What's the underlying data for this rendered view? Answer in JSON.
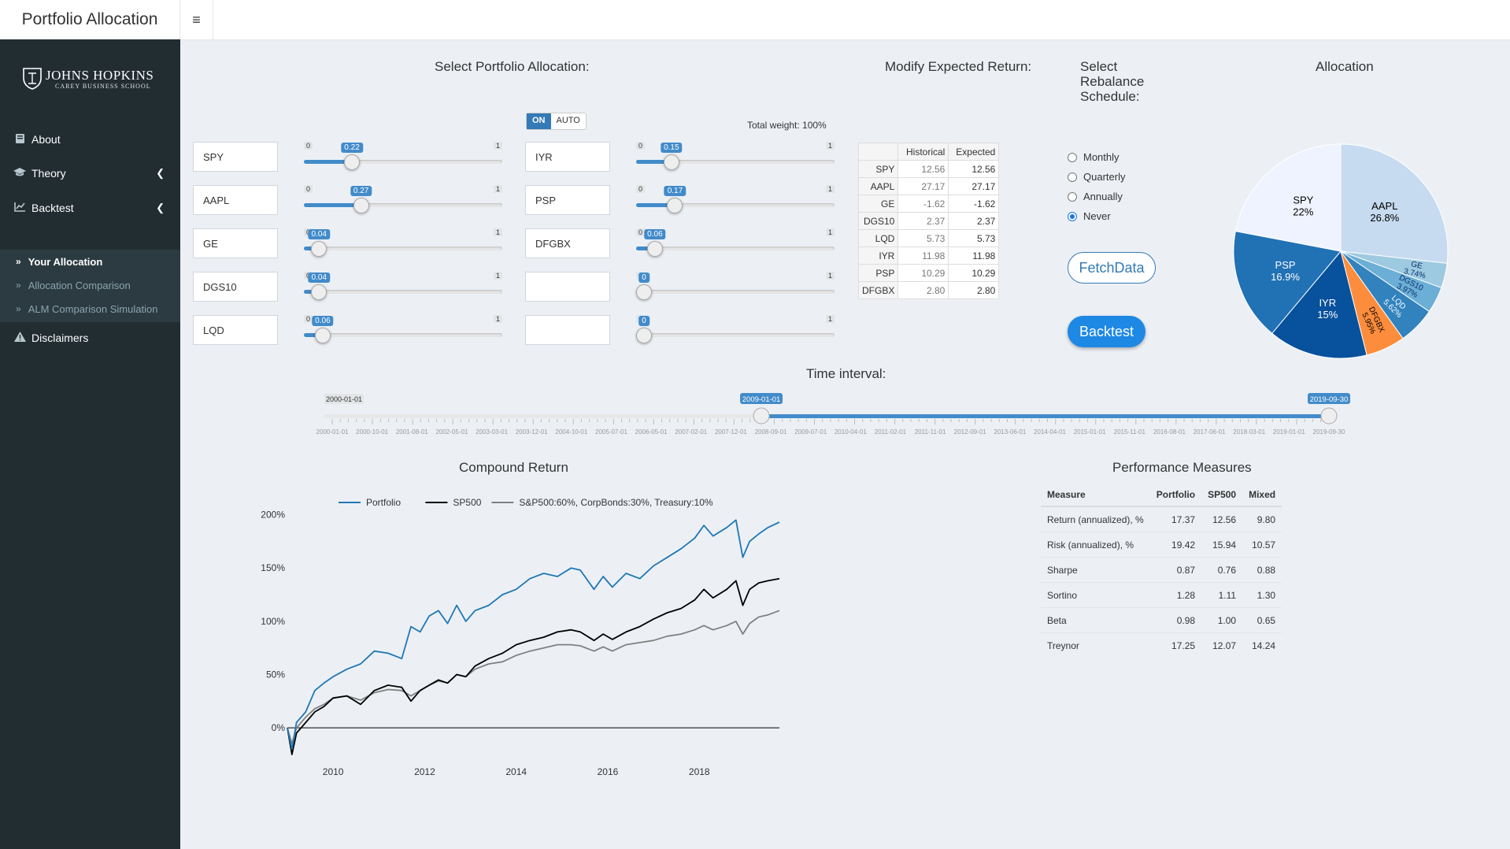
{
  "app": {
    "title": "Portfolio Allocation",
    "toggle_icon": "≡"
  },
  "brand": {
    "name": "JOHNS HOPKINS",
    "sub": "CAREY BUSINESS SCHOOL"
  },
  "sidebar": {
    "items": [
      {
        "label": "About",
        "icon": "book-icon"
      },
      {
        "label": "Theory",
        "icon": "graduation-cap-icon"
      },
      {
        "label": "Backtest",
        "icon": "line-chart-icon"
      }
    ],
    "sub_items": [
      {
        "label": "Your Allocation",
        "active": true
      },
      {
        "label": "Allocation Comparison"
      },
      {
        "label": "ALM Comparison Simulation"
      }
    ],
    "disclaimers": "Disclaimers"
  },
  "allocation": {
    "title": "Select Portfolio Allocation:",
    "switch_on": "ON",
    "switch_off": "AUTO",
    "total_weight": "Total weight: 100%",
    "slider_min": "0",
    "slider_max": "1",
    "left": [
      {
        "ticker": "SPY",
        "weight": 0.22,
        "label": "0.22"
      },
      {
        "ticker": "AAPL",
        "weight": 0.27,
        "label": "0.27"
      },
      {
        "ticker": "GE",
        "weight": 0.04,
        "label": "0.04"
      },
      {
        "ticker": "DGS10",
        "weight": 0.04,
        "label": "0.04"
      },
      {
        "ticker": "LQD",
        "weight": 0.06,
        "label": "0.06"
      }
    ],
    "right": [
      {
        "ticker": "IYR",
        "weight": 0.15,
        "label": "0.15"
      },
      {
        "ticker": "PSP",
        "weight": 0.17,
        "label": "0.17"
      },
      {
        "ticker": "DFGBX",
        "weight": 0.06,
        "label": "0.06"
      },
      {
        "ticker": "",
        "weight": 0,
        "label": "0"
      },
      {
        "ticker": "",
        "weight": 0,
        "label": "0"
      }
    ]
  },
  "expected_return": {
    "title": "Modify Expected Return:",
    "headers": [
      "",
      "Historical",
      "Expected"
    ],
    "rows": [
      [
        "SPY",
        "12.56",
        "12.56"
      ],
      [
        "AAPL",
        "27.17",
        "27.17"
      ],
      [
        "GE",
        "-1.62",
        "-1.62"
      ],
      [
        "DGS10",
        "2.37",
        "2.37"
      ],
      [
        "LQD",
        "5.73",
        "5.73"
      ],
      [
        "IYR",
        "11.98",
        "11.98"
      ],
      [
        "PSP",
        "10.29",
        "10.29"
      ],
      [
        "DFGBX",
        "2.80",
        "2.80"
      ]
    ]
  },
  "rebalance": {
    "title_lines": [
      "Select",
      "Rebalance",
      "Schedule:"
    ],
    "options": [
      "Monthly",
      "Quarterly",
      "Annually",
      "Never"
    ],
    "selected": "Never"
  },
  "buttons": {
    "fetch": "FetchData",
    "backtest": "Backtest"
  },
  "time_interval": {
    "title": "Time interval:",
    "min_label": "2000-01-01",
    "start": "2009-01-01",
    "end": "2019-09-30",
    "start_fraction": 0.435,
    "end_fraction": 1.0,
    "ticks": [
      "2000-01-01",
      "2000-10-01",
      "2001-08-01",
      "2002-05-01",
      "2003-03-01",
      "2003-12-01",
      "2004-10-01",
      "2005-07-01",
      "2006-05-01",
      "2007-02-01",
      "2007-12-01",
      "2008-09-01",
      "2009-07-01",
      "2010-04-01",
      "2011-02-01",
      "2011-11-01",
      "2012-09-01",
      "2013-06-01",
      "2014-04-01",
      "2015-01-01",
      "2015-11-01",
      "2016-08-01",
      "2017-06-01",
      "2018-03-01",
      "2019-01-01",
      "2019-09-30"
    ]
  },
  "chart_data": [
    {
      "type": "pie",
      "title": "Allocation",
      "slices": [
        {
          "name": "AAPL",
          "pct": 26.8,
          "label": "26.8%",
          "color": "#c6dbef"
        },
        {
          "name": "GE",
          "pct": 3.74,
          "label": "3.74%",
          "color": "#9ecae1"
        },
        {
          "name": "DGS10",
          "pct": 3.97,
          "label": "3.97%",
          "color": "#6baed6"
        },
        {
          "name": "LQD",
          "pct": 5.62,
          "label": "5.62%",
          "color": "#3182bd"
        },
        {
          "name": "DFGBX",
          "pct": 5.95,
          "label": "5.95%",
          "color": "#fd8d3c"
        },
        {
          "name": "IYR",
          "pct": 15,
          "label": "15%",
          "color": "#08519c"
        },
        {
          "name": "PSP",
          "pct": 16.9,
          "label": "16.9%",
          "color": "#2171b5"
        },
        {
          "name": "SPY",
          "pct": 22,
          "label": "22%",
          "color": "#eff3ff"
        }
      ]
    },
    {
      "type": "line",
      "title": "Compound Return",
      "x_ticks": [
        "2010",
        "2012",
        "2014",
        "2016",
        "2018"
      ],
      "y_ticks": [
        "0%",
        "50%",
        "100%",
        "150%",
        "200%"
      ],
      "xlim": [
        2009.0,
        2019.75
      ],
      "ylim": [
        -0.25,
        2.1
      ],
      "series": [
        {
          "name": "Portfolio",
          "color": "#1f77b4",
          "x": [
            2009.0,
            2009.1,
            2009.2,
            2009.4,
            2009.6,
            2009.8,
            2010.0,
            2010.3,
            2010.6,
            2010.9,
            2011.2,
            2011.5,
            2011.7,
            2011.9,
            2012.1,
            2012.3,
            2012.5,
            2012.7,
            2012.9,
            2013.1,
            2013.4,
            2013.7,
            2014.0,
            2014.3,
            2014.6,
            2014.9,
            2015.2,
            2015.4,
            2015.7,
            2015.9,
            2016.1,
            2016.4,
            2016.7,
            2017.0,
            2017.3,
            2017.6,
            2017.9,
            2018.1,
            2018.3,
            2018.6,
            2018.8,
            2018.95,
            2019.1,
            2019.3,
            2019.5,
            2019.75
          ],
          "y": [
            0.0,
            -0.2,
            0.05,
            0.15,
            0.35,
            0.42,
            0.48,
            0.55,
            0.6,
            0.72,
            0.7,
            0.65,
            0.95,
            0.9,
            1.05,
            1.1,
            0.98,
            1.15,
            1.0,
            1.1,
            1.15,
            1.25,
            1.3,
            1.4,
            1.45,
            1.42,
            1.5,
            1.48,
            1.3,
            1.42,
            1.32,
            1.45,
            1.4,
            1.52,
            1.6,
            1.68,
            1.78,
            1.9,
            1.8,
            1.88,
            1.95,
            1.6,
            1.75,
            1.82,
            1.88,
            1.93
          ]
        },
        {
          "name": "SP500",
          "color": "#000000",
          "x": [
            2009.0,
            2009.1,
            2009.2,
            2009.4,
            2009.6,
            2009.8,
            2010.0,
            2010.3,
            2010.6,
            2010.9,
            2011.2,
            2011.5,
            2011.7,
            2011.9,
            2012.1,
            2012.3,
            2012.5,
            2012.7,
            2012.9,
            2013.1,
            2013.4,
            2013.7,
            2014.0,
            2014.3,
            2014.6,
            2014.9,
            2015.2,
            2015.4,
            2015.7,
            2015.9,
            2016.1,
            2016.4,
            2016.7,
            2017.0,
            2017.3,
            2017.6,
            2017.9,
            2018.1,
            2018.3,
            2018.6,
            2018.8,
            2018.95,
            2019.1,
            2019.3,
            2019.5,
            2019.75
          ],
          "y": [
            0.0,
            -0.25,
            -0.05,
            0.05,
            0.15,
            0.2,
            0.28,
            0.3,
            0.22,
            0.35,
            0.4,
            0.38,
            0.25,
            0.35,
            0.4,
            0.45,
            0.42,
            0.5,
            0.48,
            0.58,
            0.65,
            0.7,
            0.78,
            0.82,
            0.85,
            0.9,
            0.92,
            0.9,
            0.82,
            0.88,
            0.83,
            0.9,
            0.95,
            1.02,
            1.08,
            1.12,
            1.2,
            1.3,
            1.22,
            1.3,
            1.38,
            1.15,
            1.3,
            1.36,
            1.38,
            1.4
          ]
        },
        {
          "name": "S&P500:60%, CorpBonds:30%, Treasury:10%",
          "color": "#808080",
          "x": [
            2009.0,
            2009.1,
            2009.2,
            2009.4,
            2009.6,
            2009.8,
            2010.0,
            2010.3,
            2010.6,
            2010.9,
            2011.2,
            2011.5,
            2011.7,
            2011.9,
            2012.1,
            2012.3,
            2012.5,
            2012.7,
            2012.9,
            2013.1,
            2013.4,
            2013.7,
            2014.0,
            2014.3,
            2014.6,
            2014.9,
            2015.2,
            2015.4,
            2015.7,
            2015.9,
            2016.1,
            2016.4,
            2016.7,
            2017.0,
            2017.3,
            2017.6,
            2017.9,
            2018.1,
            2018.3,
            2018.6,
            2018.8,
            2018.95,
            2019.1,
            2019.3,
            2019.5,
            2019.75
          ],
          "y": [
            0.0,
            -0.15,
            0.0,
            0.1,
            0.18,
            0.22,
            0.28,
            0.3,
            0.26,
            0.33,
            0.36,
            0.35,
            0.3,
            0.35,
            0.4,
            0.44,
            0.42,
            0.5,
            0.48,
            0.55,
            0.6,
            0.62,
            0.68,
            0.72,
            0.75,
            0.78,
            0.78,
            0.77,
            0.72,
            0.76,
            0.72,
            0.78,
            0.8,
            0.82,
            0.86,
            0.88,
            0.92,
            0.96,
            0.92,
            0.96,
            1.0,
            0.88,
            0.98,
            1.04,
            1.06,
            1.1
          ]
        }
      ]
    }
  ],
  "performance": {
    "title": "Performance Measures",
    "headers": [
      "Measure",
      "Portfolio",
      "SP500",
      "Mixed"
    ],
    "rows": [
      [
        "Return (annualized), %",
        "17.37",
        "12.56",
        "9.80"
      ],
      [
        "Risk (annualized), %",
        "19.42",
        "15.94",
        "10.57"
      ],
      [
        "Sharpe",
        "0.87",
        "0.76",
        "0.88"
      ],
      [
        "Sortino",
        "1.28",
        "1.11",
        "1.30"
      ],
      [
        "Beta",
        "0.98",
        "1.00",
        "0.65"
      ],
      [
        "Treynor",
        "17.25",
        "12.07",
        "14.24"
      ]
    ]
  }
}
